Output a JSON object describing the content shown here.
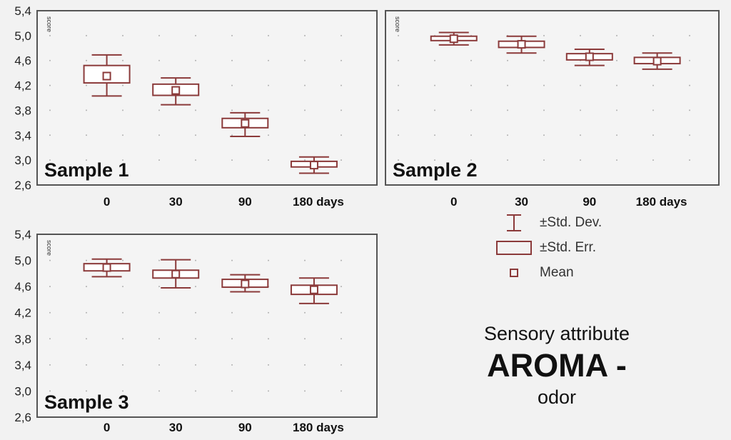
{
  "chart_data": [
    {
      "type": "boxplot",
      "panel_label": "Sample 1",
      "ylabel": "score",
      "ylim": [
        2.6,
        5.4
      ],
      "yticks": [
        "5,4",
        "5,0",
        "4,6",
        "4,2",
        "3,8",
        "3,4",
        "3,0",
        "2,6"
      ],
      "categories": [
        "0",
        "30",
        "90",
        "180 days"
      ],
      "mean": [
        4.35,
        4.12,
        3.59,
        2.92
      ],
      "se_low": [
        4.24,
        4.04,
        3.52,
        2.89
      ],
      "se_high": [
        4.52,
        4.22,
        3.67,
        2.98
      ],
      "sd_low": [
        4.03,
        3.89,
        3.38,
        2.79
      ],
      "sd_high": [
        4.69,
        4.32,
        3.76,
        3.05
      ]
    },
    {
      "type": "boxplot",
      "panel_label": "Sample 2",
      "ylabel": "score",
      "ylim": [
        2.6,
        5.4
      ],
      "yticks": [],
      "categories": [
        "0",
        "30",
        "90",
        "180 days"
      ],
      "mean": [
        4.95,
        4.86,
        4.66,
        4.59
      ],
      "se_low": [
        4.92,
        4.81,
        4.61,
        4.55
      ],
      "se_high": [
        4.99,
        4.91,
        4.71,
        4.65
      ],
      "sd_low": [
        4.85,
        4.72,
        4.52,
        4.46
      ],
      "sd_high": [
        5.05,
        4.99,
        4.78,
        4.72
      ]
    },
    {
      "type": "boxplot",
      "panel_label": "Sample 3",
      "ylabel": "score",
      "ylim": [
        2.6,
        5.4
      ],
      "yticks": [
        "5,4",
        "5,0",
        "4,6",
        "4,2",
        "3,8",
        "3,4",
        "3,0",
        "2,6"
      ],
      "categories": [
        "0",
        "30",
        "90",
        "180 days"
      ],
      "mean": [
        4.89,
        4.79,
        4.64,
        4.55
      ],
      "se_low": [
        4.84,
        4.73,
        4.59,
        4.48
      ],
      "se_high": [
        4.95,
        4.85,
        4.71,
        4.62
      ],
      "sd_low": [
        4.75,
        4.58,
        4.52,
        4.34
      ],
      "sd_high": [
        5.02,
        5.01,
        4.78,
        4.73
      ]
    }
  ],
  "legend": {
    "items": [
      {
        "symbol": "whisker-icon",
        "label": "±Std. Dev."
      },
      {
        "symbol": "box-icon",
        "label": "±Std. Err."
      },
      {
        "symbol": "square-marker-icon",
        "label": "Mean"
      }
    ]
  },
  "attribute": {
    "subtitle": "Sensory attribute",
    "name": "AROMA -",
    "qualifier": "odor"
  },
  "colors": {
    "series": "#8b3a3a",
    "frame": "#555555",
    "plot_bg": "#f4f4f4",
    "grid_dot": "#b0b0b0"
  }
}
